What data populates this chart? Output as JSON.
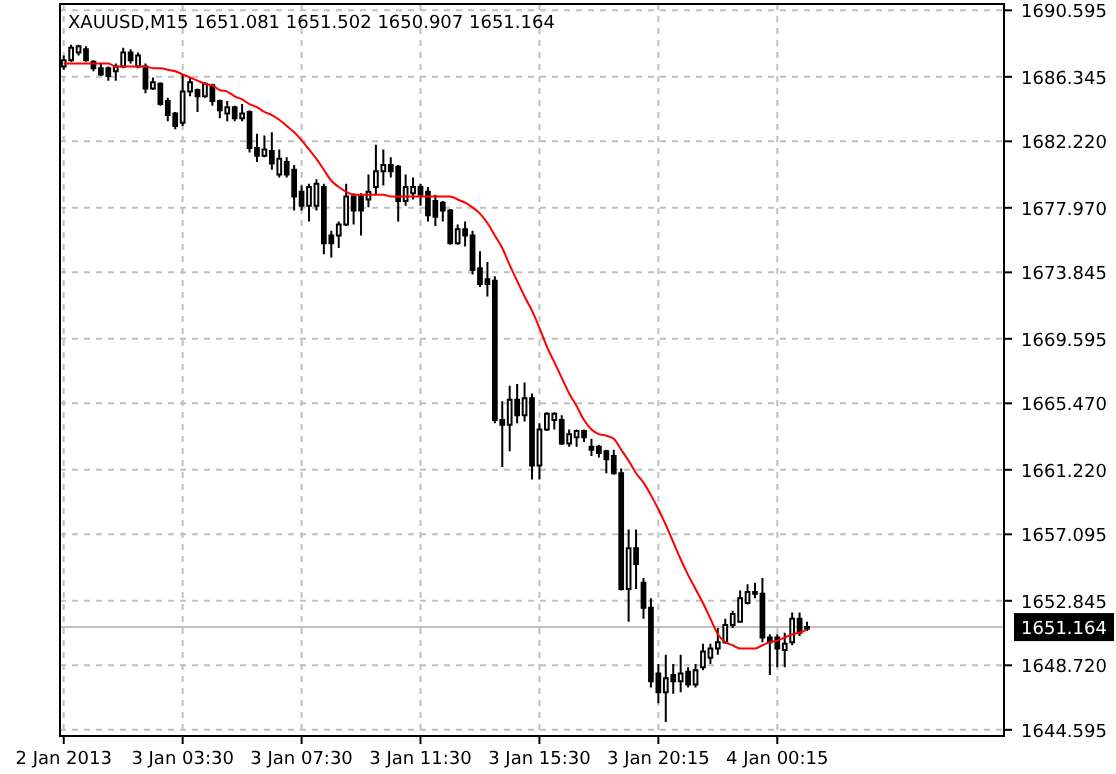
{
  "chart_data": {
    "type": "candlestick",
    "title": "XAUUSD,M15  1651.081 1651.502 1650.907 1651.164",
    "categories": [
      "2 Jan 2013",
      null,
      null,
      null,
      null,
      null,
      null,
      null,
      null,
      null,
      null,
      null,
      null,
      null,
      null,
      null,
      "3 Jan 03:30",
      null,
      null,
      null,
      null,
      null,
      null,
      null,
      null,
      null,
      null,
      null,
      null,
      null,
      null,
      null,
      "3 Jan 07:30",
      null,
      null,
      null,
      null,
      null,
      null,
      null,
      null,
      null,
      null,
      null,
      null,
      null,
      null,
      null,
      "3 Jan 11:30",
      null,
      null,
      null,
      null,
      null,
      null,
      null,
      null,
      null,
      null,
      null,
      null,
      null,
      null,
      null,
      "3 Jan 15:30",
      null,
      null,
      null,
      null,
      null,
      null,
      null,
      null,
      null,
      null,
      null,
      null,
      null,
      null,
      null,
      "3 Jan 20:15",
      null,
      null,
      null,
      null,
      null,
      null,
      null,
      null,
      null,
      null,
      null,
      null,
      null,
      null,
      null,
      "4 Jan 00:15",
      null,
      null,
      null,
      null,
      null,
      null,
      null,
      null,
      null,
      null,
      null,
      null,
      null,
      null,
      null,
      null,
      null,
      null,
      null,
      null,
      null,
      null,
      null,
      null,
      null,
      null,
      null,
      null,
      null,
      null
    ],
    "ohlc": [
      [
        1687.0,
        1687.7,
        1686.8,
        1687.4
      ],
      [
        1687.4,
        1688.4,
        1687.3,
        1688.2
      ],
      [
        1687.9,
        1688.4,
        1687.7,
        1688.3
      ],
      [
        1688.1,
        1688.3,
        1687.3,
        1687.4
      ],
      [
        1687.3,
        1687.4,
        1686.7,
        1686.9
      ],
      [
        1686.9,
        1687.2,
        1686.4,
        1686.5
      ],
      [
        1686.9,
        1687.0,
        1686.1,
        1686.4
      ],
      [
        1686.7,
        1687.2,
        1686.1,
        1687.0
      ],
      [
        1687.0,
        1688.2,
        1686.9,
        1687.9
      ],
      [
        1687.9,
        1688.1,
        1687.2,
        1687.4
      ],
      [
        1687.0,
        1687.9,
        1686.9,
        1687.7
      ],
      [
        1687.0,
        1687.2,
        1685.3,
        1685.6
      ],
      [
        1685.6,
        1686.3,
        1685.5,
        1686.0
      ],
      [
        1685.9,
        1686.0,
        1684.5,
        1684.6
      ],
      [
        1684.8,
        1685.0,
        1683.5,
        1683.9
      ],
      [
        1684.0,
        1684.1,
        1683.0,
        1683.2
      ],
      [
        1683.4,
        1686.5,
        1683.2,
        1685.4
      ],
      [
        1685.4,
        1686.3,
        1685.1,
        1686.0
      ],
      [
        1685.5,
        1685.6,
        1684.1,
        1685.1
      ],
      [
        1685.1,
        1686.0,
        1685.0,
        1685.9
      ],
      [
        1685.8,
        1685.9,
        1684.5,
        1684.8
      ],
      [
        1684.8,
        1684.9,
        1683.7,
        1684.2
      ],
      [
        1684.0,
        1684.8,
        1683.5,
        1684.4
      ],
      [
        1684.4,
        1684.5,
        1683.5,
        1683.7
      ],
      [
        1683.7,
        1684.6,
        1683.5,
        1684.0
      ],
      [
        1684.1,
        1684.2,
        1681.5,
        1681.8
      ],
      [
        1681.8,
        1682.7,
        1680.9,
        1681.3
      ],
      [
        1681.3,
        1682.6,
        1681.2,
        1681.7
      ],
      [
        1681.6,
        1682.8,
        1680.4,
        1680.8
      ],
      [
        1680.1,
        1681.7,
        1679.9,
        1681.1
      ],
      [
        1680.9,
        1681.2,
        1679.9,
        1680.1
      ],
      [
        1680.4,
        1680.7,
        1677.8,
        1678.7
      ],
      [
        1679.0,
        1679.4,
        1677.8,
        1678.1
      ],
      [
        1678.1,
        1679.5,
        1677.1,
        1679.3
      ],
      [
        1678.1,
        1679.8,
        1677.8,
        1679.5
      ],
      [
        1679.3,
        1679.5,
        1675.0,
        1675.7
      ],
      [
        1676.2,
        1676.5,
        1674.8,
        1675.7
      ],
      [
        1676.2,
        1677.1,
        1675.4,
        1676.9
      ],
      [
        1676.9,
        1679.5,
        1676.8,
        1678.7
      ],
      [
        1678.7,
        1678.9,
        1676.9,
        1677.8
      ],
      [
        1678.7,
        1678.9,
        1676.2,
        1677.8
      ],
      [
        1678.5,
        1680.1,
        1678.0,
        1679.0
      ],
      [
        1679.3,
        1682.0,
        1678.8,
        1680.3
      ],
      [
        1680.3,
        1681.7,
        1679.4,
        1680.7
      ],
      [
        1680.7,
        1681.2,
        1679.9,
        1680.3
      ],
      [
        1680.6,
        1680.7,
        1677.1,
        1678.4
      ],
      [
        1678.4,
        1680.1,
        1678.1,
        1679.3
      ],
      [
        1678.9,
        1679.9,
        1678.5,
        1679.3
      ],
      [
        1679.3,
        1679.5,
        1678.1,
        1678.8
      ],
      [
        1679.0,
        1679.3,
        1677.1,
        1677.5
      ],
      [
        1678.4,
        1678.8,
        1676.8,
        1677.4
      ],
      [
        1678.3,
        1678.4,
        1677.1,
        1677.8
      ],
      [
        1677.8,
        1677.9,
        1675.6,
        1675.7
      ],
      [
        1675.7,
        1676.9,
        1675.6,
        1676.6
      ],
      [
        1676.6,
        1677.1,
        1675.5,
        1676.2
      ],
      [
        1676.2,
        1676.5,
        1673.7,
        1674.0
      ],
      [
        1674.1,
        1675.2,
        1672.9,
        1673.1
      ],
      [
        1673.4,
        1674.5,
        1672.3,
        1673.1
      ],
      [
        1673.3,
        1673.6,
        1664.2,
        1664.4
      ],
      [
        1664.4,
        1665.6,
        1661.4,
        1664.1
      ],
      [
        1664.1,
        1666.6,
        1662.4,
        1665.7
      ],
      [
        1665.7,
        1666.7,
        1664.2,
        1664.7
      ],
      [
        1664.7,
        1666.8,
        1664.3,
        1665.8
      ],
      [
        1665.8,
        1666.1,
        1660.6,
        1661.5
      ],
      [
        1661.5,
        1664.2,
        1660.6,
        1663.8
      ],
      [
        1663.8,
        1664.9,
        1663.7,
        1664.8
      ],
      [
        1664.4,
        1664.9,
        1663.8,
        1664.8
      ],
      [
        1664.4,
        1664.7,
        1662.8,
        1662.9
      ],
      [
        1662.9,
        1663.8,
        1662.7,
        1663.5
      ],
      [
        1663.3,
        1663.8,
        1662.7,
        1663.7
      ],
      [
        1663.7,
        1663.8,
        1663.0,
        1663.3
      ],
      [
        1662.7,
        1663.2,
        1662.1,
        1662.5
      ],
      [
        1662.7,
        1662.8,
        1662.0,
        1662.3
      ],
      [
        1662.4,
        1662.5,
        1661.0,
        1661.9
      ],
      [
        1662.1,
        1662.5,
        1660.9,
        1661.0
      ],
      [
        1661.0,
        1661.3,
        1653.5,
        1653.6
      ],
      [
        1653.6,
        1657.4,
        1651.5,
        1656.2
      ],
      [
        1656.2,
        1657.4,
        1653.6,
        1655.2
      ],
      [
        1654.0,
        1654.3,
        1651.7,
        1652.4
      ],
      [
        1652.4,
        1653.0,
        1647.3,
        1647.7
      ],
      [
        1648.2,
        1648.8,
        1646.3,
        1647.0
      ],
      [
        1647.0,
        1649.4,
        1645.1,
        1647.9
      ],
      [
        1648.1,
        1648.8,
        1646.9,
        1647.7
      ],
      [
        1647.7,
        1649.4,
        1647.0,
        1648.2
      ],
      [
        1648.3,
        1648.6,
        1647.3,
        1647.5
      ],
      [
        1647.5,
        1648.8,
        1647.3,
        1648.4
      ],
      [
        1648.6,
        1650.1,
        1648.4,
        1649.6
      ],
      [
        1649.2,
        1650.1,
        1648.8,
        1649.8
      ],
      [
        1649.8,
        1651.1,
        1649.4,
        1650.2
      ],
      [
        1650.2,
        1651.7,
        1650.1,
        1651.3
      ],
      [
        1651.3,
        1652.2,
        1651.1,
        1652.0
      ],
      [
        1651.5,
        1653.5,
        1651.5,
        1653.0
      ],
      [
        1652.7,
        1653.9,
        1652.6,
        1653.4
      ],
      [
        1653.4,
        1654.0,
        1653.0,
        1653.3
      ],
      [
        1653.3,
        1654.3,
        1650.2,
        1650.5
      ],
      [
        1650.5,
        1650.7,
        1648.1,
        1650.2
      ],
      [
        1650.5,
        1650.7,
        1648.6,
        1649.8
      ],
      [
        1649.7,
        1650.8,
        1648.6,
        1650.1
      ],
      [
        1650.2,
        1652.1,
        1650.0,
        1651.7
      ],
      [
        1651.7,
        1652.1,
        1650.6,
        1650.8
      ],
      [
        1651.081,
        1651.502,
        1650.907,
        1651.164
      ],
      null,
      null,
      null,
      null,
      null,
      null,
      null,
      null,
      null,
      null,
      null,
      null,
      null,
      null,
      null,
      null,
      null,
      null,
      null,
      null,
      null,
      null,
      null,
      null,
      null,
      null
    ],
    "series": [
      {
        "type": "line",
        "color": "#ff0000",
        "values": [
          1687.2,
          1687.2,
          1687.2,
          1687.2,
          1687.2,
          1687.2,
          1687.2,
          1687.0,
          1687.0,
          1687.0,
          1687.0,
          1687.0,
          1686.9,
          1686.9,
          1686.8,
          1686.7,
          1686.5,
          1686.3,
          1686.1,
          1685.9,
          1685.8,
          1685.5,
          1685.4,
          1685.1,
          1684.9,
          1684.6,
          1684.4,
          1684.1,
          1683.9,
          1683.6,
          1683.2,
          1682.8,
          1682.3,
          1681.7,
          1681.1,
          1680.4,
          1679.7,
          1679.3,
          1679.0,
          1678.8,
          1678.8,
          1678.8,
          1678.8,
          1678.8,
          1678.7,
          1678.7,
          1678.7,
          1678.7,
          1678.7,
          1678.7,
          1678.7,
          1678.7,
          1678.7,
          1678.5,
          1678.3,
          1678.0,
          1677.6,
          1677.0,
          1676.2,
          1675.4,
          1674.3,
          1673.3,
          1672.3,
          1671.4,
          1670.3,
          1669.1,
          1668.1,
          1667.1,
          1666.1,
          1665.3,
          1664.4,
          1663.8,
          1663.5,
          1663.4,
          1663.2,
          1662.5,
          1661.8,
          1661.0,
          1660.4,
          1659.6,
          1658.7,
          1657.7,
          1656.6,
          1655.5,
          1654.5,
          1653.6,
          1652.7,
          1651.7,
          1650.7,
          1650.2,
          1650.0,
          1649.8,
          1649.8,
          1649.8,
          1650.0,
          1650.2,
          1650.3,
          1650.5,
          1650.7,
          1650.8,
          1651.0,
          null,
          null,
          null,
          null,
          null,
          null,
          null,
          null,
          null,
          null,
          null,
          null,
          null,
          null,
          null,
          null,
          null,
          null,
          null,
          null,
          null,
          null,
          null,
          null,
          null,
          null
        ]
      }
    ],
    "ylim": [
      1644.2,
      1691.0
    ],
    "yticks": [
      1690.595,
      1686.345,
      {
        "value": 1682.22,
        "label": "1682.220"
      },
      {
        "value": 1677.97,
        "label": "1677.970"
      },
      1673.845,
      1669.595,
      {
        "value": 1665.47,
        "label": "1665.470"
      },
      {
        "value": 1661.22,
        "label": "1661.220"
      },
      1657.095,
      1652.845,
      {
        "value": 1648.72,
        "label": "1648.720"
      },
      1644.595
    ],
    "ref_lines": [
      {
        "axis": "y",
        "value": 1651.164,
        "label": "1651.164",
        "color": "#c0c0c0"
      }
    ],
    "grid": true
  }
}
